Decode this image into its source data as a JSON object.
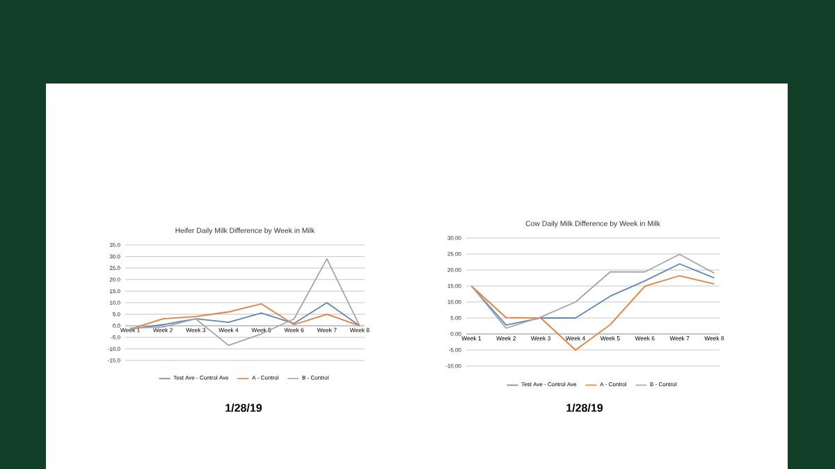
{
  "chart_data": [
    {
      "type": "line",
      "title": "Heifer Daily Milk Difference by Week in Milk",
      "categories": [
        "Week 1",
        "Week 2",
        "Week 3",
        "Week 4",
        "Week 5",
        "Week 6",
        "Week 7",
        "Week 8"
      ],
      "series": [
        {
          "name": "Test Ave - Control Ave",
          "color": "#5b87c0",
          "values": [
            -1.4,
            0.5,
            3,
            1.5,
            5.5,
            1,
            10,
            0
          ]
        },
        {
          "name": "A - Control",
          "color": "#ed7d31",
          "values": [
            -1.5,
            3,
            4,
            6,
            9.5,
            0.5,
            5,
            0
          ]
        },
        {
          "name": "B - Control",
          "color": "#a5a5a5",
          "values": [
            -1,
            -0.5,
            3,
            -8.5,
            -3.5,
            3,
            29,
            0
          ]
        }
      ],
      "ylim": [
        -15,
        35
      ],
      "yticks": [
        {
          "value": -15,
          "label": "-15.0"
        },
        {
          "value": -10,
          "label": "-10.0"
        },
        {
          "value": -5,
          "label": "-5.0"
        },
        {
          "value": 0,
          "label": "0.0"
        },
        {
          "value": 5,
          "label": "5.0"
        },
        {
          "value": 10,
          "label": "10.0"
        },
        {
          "value": 15,
          "label": "15.0"
        },
        {
          "value": 20,
          "label": "20.0"
        },
        {
          "value": 25,
          "label": "25.0"
        },
        {
          "value": 30,
          "label": "30.0"
        },
        {
          "value": 35,
          "label": "35.0"
        }
      ],
      "grid": "y",
      "legend": "bottom",
      "marker": "none",
      "line_style": "solid",
      "annotations": [
        "1/28/19"
      ]
    },
    {
      "type": "line",
      "title": "Cow Daily Milk Difference by Week in Milk",
      "categories": [
        "Week 1",
        "Week 2",
        "Week 3",
        "Week 4",
        "Week 5",
        "Week 6",
        "Week 7",
        "Week 8"
      ],
      "series": [
        {
          "name": "Test Ave - Control Ave",
          "color": "#5b87c0",
          "values": [
            15,
            2.8,
            5,
            5,
            11.8,
            16.6,
            21.9,
            17.5
          ]
        },
        {
          "name": "A - Control",
          "color": "#ed7d31",
          "values": [
            15,
            5.1,
            5,
            -5,
            2.9,
            14.9,
            18.2,
            15.6
          ]
        },
        {
          "name": "B - Control",
          "color": "#a5a5a5",
          "values": [
            15,
            1.8,
            5.3,
            10,
            19.4,
            19.4,
            24.9,
            19
          ]
        }
      ],
      "ylim": [
        -10,
        30
      ],
      "yticks": [
        {
          "value": -10,
          "label": "-10.00"
        },
        {
          "value": -5,
          "label": "-5.00"
        },
        {
          "value": 0,
          "label": "0.00"
        },
        {
          "value": 5,
          "label": "5.00"
        },
        {
          "value": 10,
          "label": "10.00"
        },
        {
          "value": 15,
          "label": "15.00"
        },
        {
          "value": 20,
          "label": "20.00"
        },
        {
          "value": 25,
          "label": "25.00"
        },
        {
          "value": 30,
          "label": "30.00"
        }
      ],
      "grid": "y",
      "legend": "bottom",
      "marker": "none",
      "line_style": "solid",
      "annotations": [
        "1/28/19"
      ]
    }
  ]
}
